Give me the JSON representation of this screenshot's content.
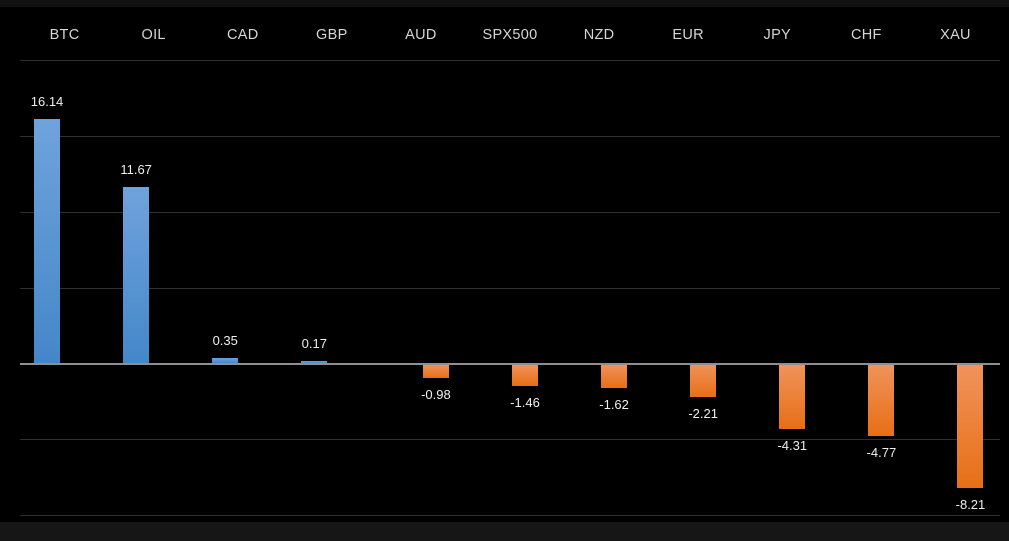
{
  "window": {
    "background": "#000000",
    "top_strip_color": "#121212",
    "bottom_strip_color": "#161616"
  },
  "chart_data": {
    "type": "bar",
    "title": "",
    "xlabel": "",
    "ylabel": "",
    "categories": [
      "BTC",
      "OIL",
      "CAD",
      "GBP",
      "AUD",
      "SPX500",
      "NZD",
      "EUR",
      "JPY",
      "CHF",
      "XAU"
    ],
    "values": [
      16.14,
      11.67,
      0.35,
      0.17,
      -0.98,
      -1.46,
      -1.62,
      -2.21,
      -4.31,
      -4.77,
      -8.21
    ],
    "value_labels": [
      "16.14",
      "11.67",
      "0.35",
      "0.17",
      "-0.98",
      "-1.46",
      "-1.62",
      "-2.21",
      "-4.31",
      "-4.77",
      "-8.21"
    ],
    "ylim": [
      -10,
      20
    ],
    "grid_step": 5,
    "grid": true,
    "legend_position": "none",
    "data_labels": true,
    "colors": {
      "positive": "#5B9BD5",
      "negative": "#ED7D31",
      "positive_gradient_top": "#6FA3DC",
      "positive_gradient_bottom": "#4487C9",
      "negative_gradient_top": "#F0935C",
      "negative_gradient_bottom": "#E76F15",
      "gridline": "#2e2e2e",
      "zero_line": "#8f8f8f",
      "category_label": "#d6d6d6",
      "value_label": "#efefef",
      "background": "#000000"
    }
  }
}
